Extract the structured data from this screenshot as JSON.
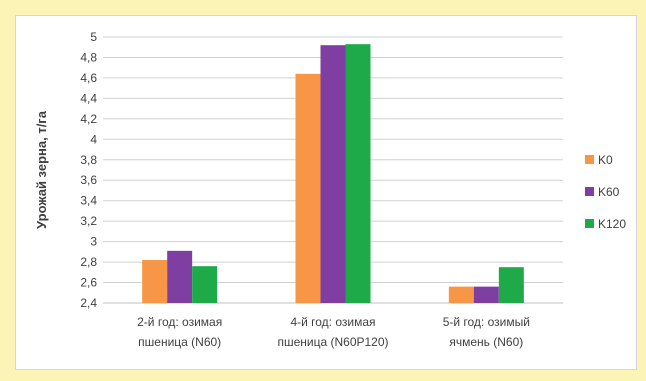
{
  "chart_data": {
    "type": "bar",
    "title": "",
    "xlabel": "",
    "ylabel": "Урожай зерна, т/га",
    "ylim": [
      2.4,
      5.0
    ],
    "yticks": [
      "2,4",
      "2,6",
      "2,8",
      "3",
      "3,2",
      "3,4",
      "3,6",
      "3,8",
      "4",
      "4,2",
      "4,4",
      "4,6",
      "4,8",
      "5"
    ],
    "yticks_values": [
      2.4,
      2.6,
      2.8,
      3.0,
      3.2,
      3.4,
      3.6,
      3.8,
      4.0,
      4.2,
      4.4,
      4.6,
      4.8,
      5.0
    ],
    "grid": true,
    "legend": "right",
    "categories": [
      [
        "2-й год: озимая",
        "пшеница (N60)"
      ],
      [
        "4-й год: озимая",
        "пшеница (N60P120)"
      ],
      [
        "5-й год: озимый",
        "ячмень (N60)"
      ]
    ],
    "series": [
      {
        "name": "K0",
        "color": "#f79646",
        "values": [
          2.82,
          4.64,
          2.56
        ]
      },
      {
        "name": "K60",
        "color": "#7f3fa2",
        "values": [
          2.91,
          4.92,
          2.56
        ]
      },
      {
        "name": "K120",
        "color": "#1faa4a",
        "values": [
          2.76,
          4.93,
          2.75
        ]
      }
    ]
  }
}
